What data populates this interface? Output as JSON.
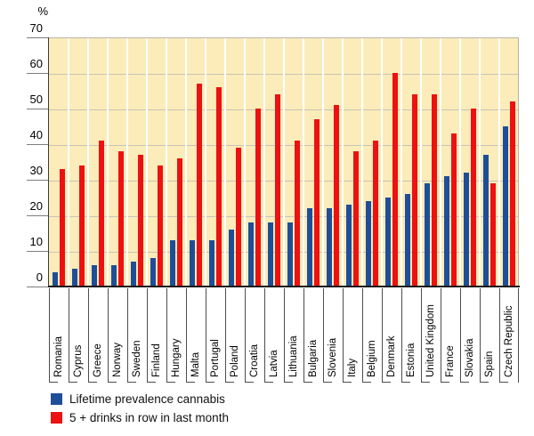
{
  "chart": {
    "unit_label": "%",
    "colors": {
      "plot_background": "#FBECB9",
      "cannabis_blue": "#1F4E99",
      "drinks_red": "#ED1111",
      "horizontal_grid": "#C8C3B8",
      "vertical_grid": "#FFFFFF",
      "axis_black": "#1A1A1A"
    }
  },
  "chart_data": {
    "type": "bar",
    "title": "",
    "ylabel": "%",
    "xlabel": "",
    "ylim": [
      0,
      70
    ],
    "ytick_step": 10,
    "yticks": [
      70,
      60,
      50,
      40,
      30,
      20,
      10,
      0
    ],
    "grid": true,
    "legend_position": "bottom-left",
    "categories": [
      "Romania",
      "Cyprus",
      "Greece",
      "Norway",
      "Sweden",
      "Finland",
      "Hungary",
      "Malta",
      "Portugal",
      "Poland",
      "Croatia",
      "Latvia",
      "Lithuania",
      "Bulgaria",
      "Slovenia",
      "Italy",
      "Belgium",
      "Denmark",
      "Estonia",
      "United Kingdom",
      "France",
      "Slovakia",
      "Spain",
      "Czech Republic"
    ],
    "series": [
      {
        "name": "Lifetime prevalence cannabis",
        "color": "#1F4E99",
        "values": [
          4,
          5,
          6,
          6,
          7,
          8,
          13,
          13,
          13,
          16,
          18,
          18,
          18,
          22,
          22,
          23,
          24,
          25,
          26,
          29,
          31,
          32,
          37,
          45
        ]
      },
      {
        "name": "5 + drinks in row in last month",
        "color": "#ED1111",
        "values": [
          33,
          34,
          41,
          38,
          37,
          34,
          36,
          57,
          56,
          39,
          50,
          54,
          41,
          47,
          51,
          38,
          41,
          60,
          54,
          54,
          43,
          50,
          29,
          52
        ]
      }
    ]
  }
}
